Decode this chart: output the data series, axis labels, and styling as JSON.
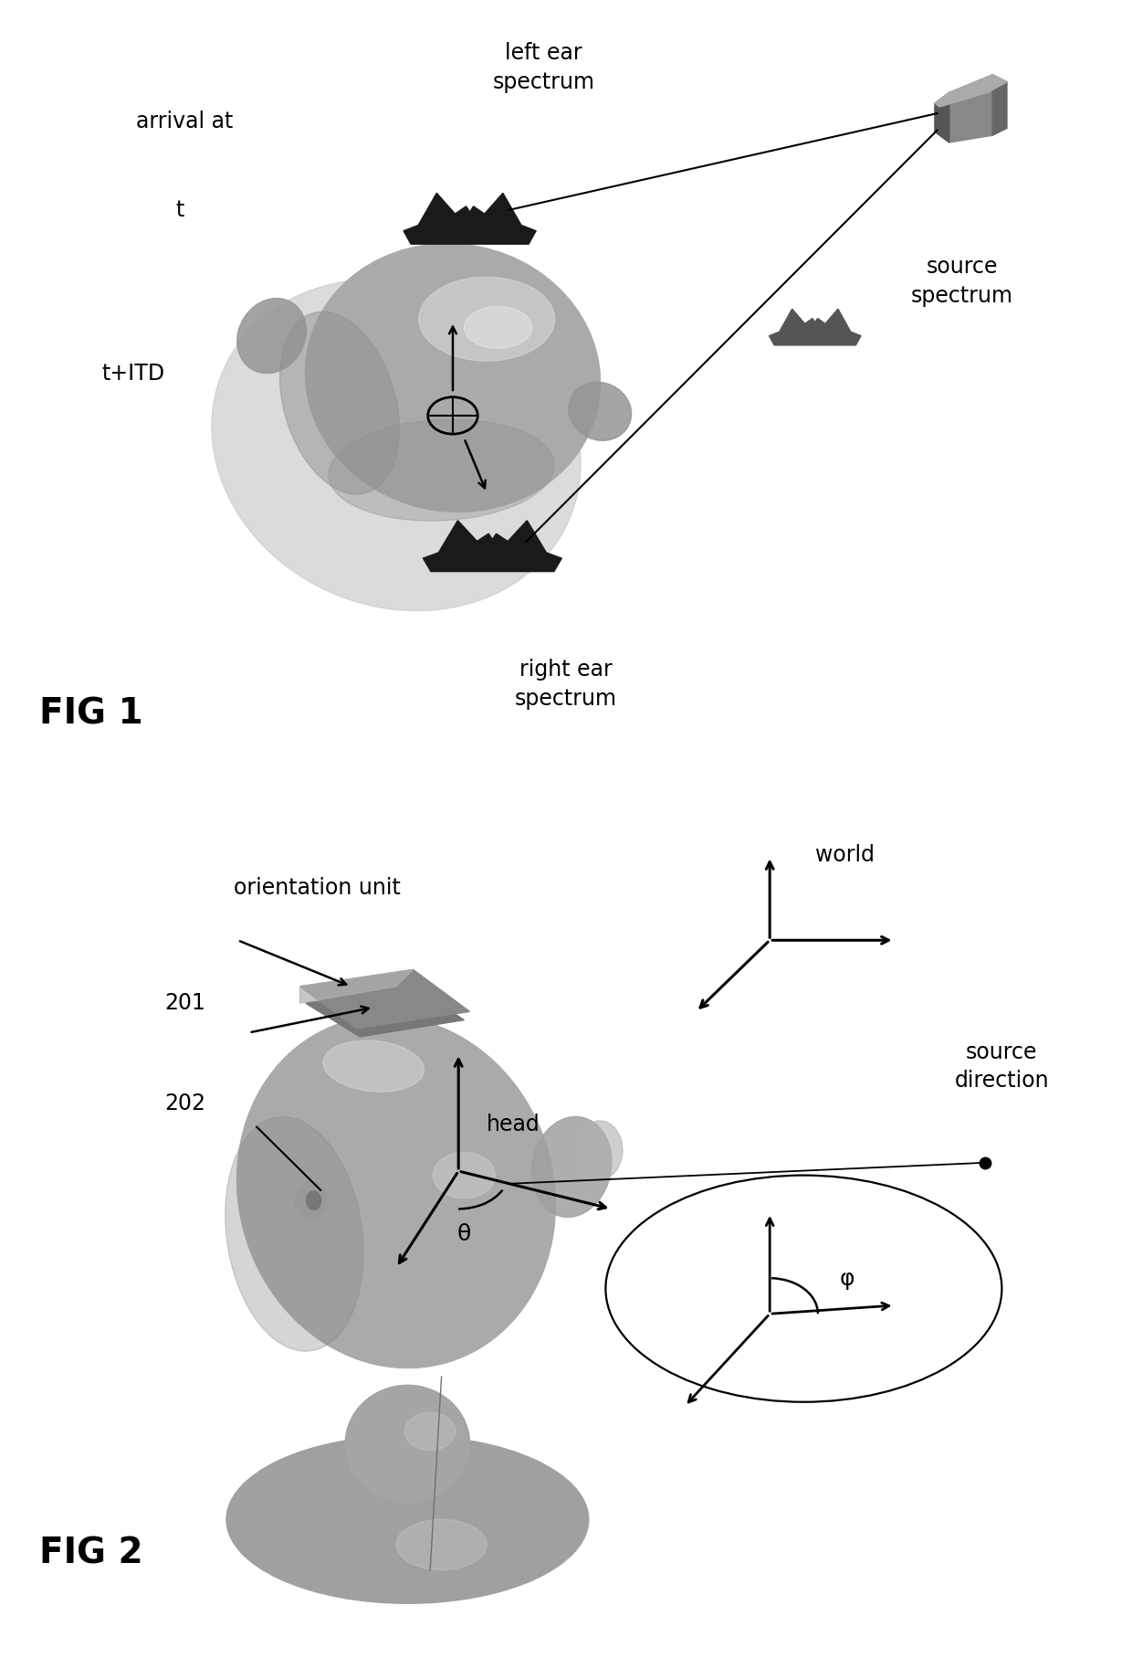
{
  "fig_width": 12.4,
  "fig_height": 18.38,
  "dpi": 100,
  "background_color": "#ffffff",
  "fig1": {
    "label": "FIG 1",
    "left_ear_spectrum_text": "left ear\nspectrum",
    "right_ear_spectrum_text": "right ear\nspectrum",
    "source_spectrum_text": "source\nspectrum",
    "arrival_at_text": "arrival at",
    "t_text": "t",
    "titd_text": "t+ITD",
    "label_fontsize": 28,
    "text_fontsize": 17
  },
  "fig2": {
    "label": "FIG 2",
    "orientation_unit_text": "orientation unit",
    "num_201": "201",
    "num_202": "202",
    "world_text": "world",
    "source_direction_text": "source\ndirection",
    "head_label": "head",
    "theta_label": "θ",
    "phi_label": "φ",
    "label_fontsize": 28,
    "text_fontsize": 17
  }
}
